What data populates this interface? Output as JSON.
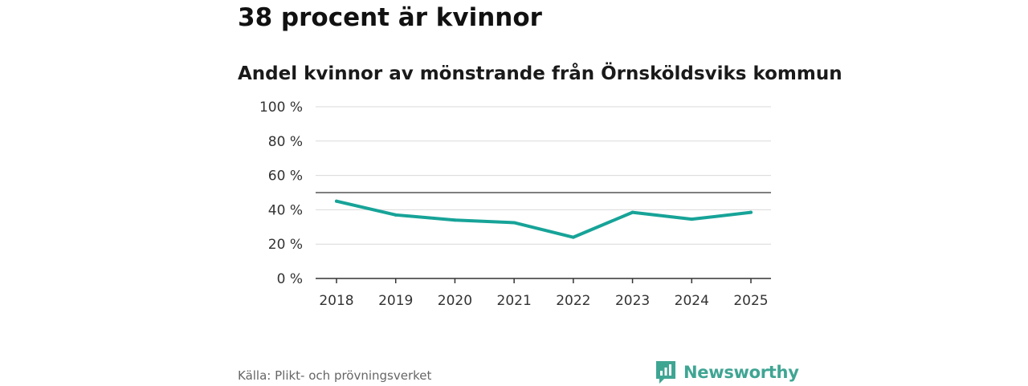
{
  "headline": "38 procent är kvinnor",
  "source": "Källa: Plikt- och prövningsverket",
  "brand": {
    "name": "Newsworthy",
    "icon": "newsworthy-logo-icon",
    "color": "#3fa593"
  },
  "colors": {
    "line": "#17a398",
    "grid": "#d9d9d9",
    "reference": "#555555",
    "axis": "#333333"
  },
  "chart_data": {
    "type": "line",
    "title": "Andel kvinnor av mönstrande från Örnsköldsviks kommun",
    "xlabel": "",
    "ylabel": "",
    "categories": [
      "2018",
      "2019",
      "2020",
      "2021",
      "2022",
      "2023",
      "2024",
      "2025"
    ],
    "series": [
      {
        "name": "Andel kvinnor",
        "values": [
          45,
          37,
          34,
          32.5,
          24,
          38.5,
          34.5,
          38.5
        ]
      }
    ],
    "reference_line": 50,
    "ylim": [
      0,
      100
    ],
    "yticks": [
      0,
      20,
      40,
      60,
      80,
      100
    ],
    "ytick_labels": [
      "0 %",
      "20 %",
      "40 %",
      "60 %",
      "80 %",
      "100 %"
    ],
    "grid": true
  }
}
